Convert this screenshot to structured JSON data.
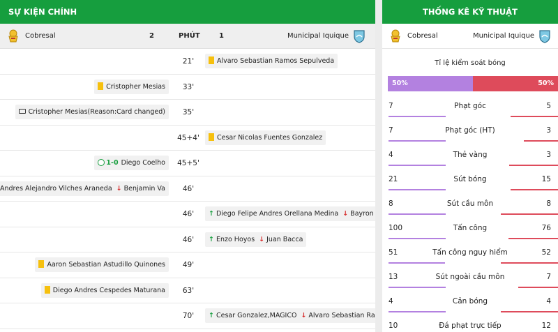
{
  "events_panel": {
    "title": "SỰ KIỆN CHÍNH",
    "home_team": "Cobresal",
    "home_score": "2",
    "minute_label": "PHÚT",
    "away_score": "1",
    "away_team": "Municipal Iquique",
    "rows": [
      {
        "minute": "21'",
        "side": "away",
        "type": "yellow",
        "text": "Alvaro Sebastian Ramos Sepulveda"
      },
      {
        "minute": "33'",
        "side": "home",
        "type": "yellow",
        "text": "Cristopher Mesias"
      },
      {
        "minute": "35'",
        "side": "home",
        "type": "var",
        "text": "Cristopher Mesias(Reason:Card changed)"
      },
      {
        "minute": "45+4'",
        "side": "away",
        "type": "yellow",
        "text": "Cesar Nicolas Fuentes Gonzalez"
      },
      {
        "minute": "45+5'",
        "side": "home",
        "type": "goal",
        "score": "1-0",
        "text": "Diego Coelho"
      },
      {
        "minute": "46'",
        "side": "home",
        "type": "sub",
        "in": "Andres Alejandro Vilches Araneda",
        "out": "Benjamin Va"
      },
      {
        "minute": "46'",
        "side": "away",
        "type": "sub",
        "in": "Diego Felipe Andres Orellana Medina",
        "out": "Bayron B"
      },
      {
        "minute": "46'",
        "side": "away",
        "type": "sub",
        "in": "Enzo Hoyos",
        "out": "Juan Bacca"
      },
      {
        "minute": "49'",
        "side": "home",
        "type": "yellow",
        "text": "Aaron Sebastian Astudillo Quinones"
      },
      {
        "minute": "63'",
        "side": "home",
        "type": "yellow",
        "text": "Diego Andres Cespedes Maturana"
      },
      {
        "minute": "70'",
        "side": "away",
        "type": "sub",
        "in": "Cesar Gonzalez,MAGICO",
        "out": "Alvaro Sebastian Ram"
      }
    ]
  },
  "stats_panel": {
    "title": "THỐNG KÊ KỸ THUẬT",
    "home_team": "Cobresal",
    "away_team": "Municipal Iquique",
    "possession_label": "Tỉ lệ kiểm soát bóng",
    "possession_home": "50%",
    "possession_away": "50%",
    "possession_home_fraction": 0.5,
    "stats": [
      {
        "label": "Phạt góc",
        "home": "7",
        "away": "5"
      },
      {
        "label": "Phạt góc (HT)",
        "home": "7",
        "away": "3"
      },
      {
        "label": "Thẻ vàng",
        "home": "4",
        "away": "3"
      },
      {
        "label": "Sút bóng",
        "home": "21",
        "away": "15"
      },
      {
        "label": "Sút cầu môn",
        "home": "8",
        "away": "8"
      },
      {
        "label": "Tấn công",
        "home": "100",
        "away": "76"
      },
      {
        "label": "Tấn công nguy hiểm",
        "home": "51",
        "away": "52"
      },
      {
        "label": "Sút ngoài cầu môn",
        "home": "13",
        "away": "7"
      },
      {
        "label": "Cản bóng",
        "home": "4",
        "away": "4"
      },
      {
        "label": "Đá phạt trực tiếp",
        "home": "10",
        "away": "12"
      }
    ]
  },
  "colors": {
    "header_green": "#169e3e",
    "home_purple": "#b381e0",
    "away_red": "#de4b5b",
    "yellow_card": "#f6c00e"
  },
  "icons": {
    "home_logo": "cobresal-crest-icon",
    "away_logo": "iquique-shield-icon"
  }
}
